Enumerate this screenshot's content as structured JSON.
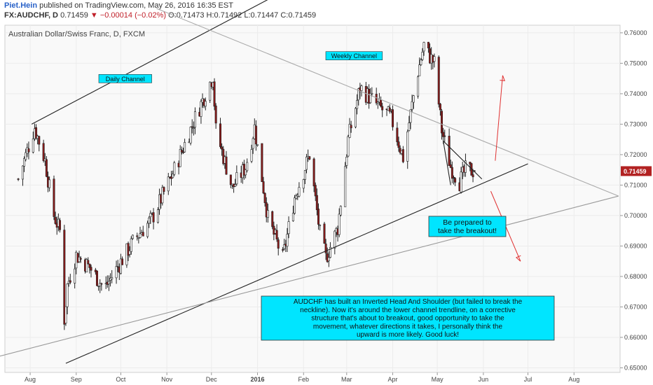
{
  "header": {
    "author": "Piet.Hein",
    "published_text": "published on TradingView.com, May 26, 2016 16:35 EST",
    "symbol": "FX:AUDCHF, D",
    "last": "0.71459",
    "change": "▼ −0.00014 (−0.02%)",
    "open": "O:0.71473",
    "high": "H:0.71492",
    "low": "L:0.71447",
    "close": "C:0.71459"
  },
  "chart_data": {
    "type": "candlestick",
    "title": "Australian Dollar/Swiss Franc, D, FXCM",
    "ylim": [
      0.6485,
      0.7625
    ],
    "y_ticks": [
      "0.76000",
      "0.75000",
      "0.74000",
      "0.73000",
      "0.72000",
      "0.71000",
      "0.70000",
      "0.69000",
      "0.68000",
      "0.67000",
      "0.66000",
      "0.65000"
    ],
    "x_ticks": [
      "Aug",
      "Sep",
      "Oct",
      "Nov",
      "Dec",
      "2016",
      "Feb",
      "Mar",
      "Apr",
      "May",
      "Jun",
      "Jul",
      "Aug"
    ],
    "last_price_label": "0.71459",
    "colors": {
      "up": "#ffffff",
      "down": "#8b1a1a",
      "wick": "#222222",
      "price_tag": "#b22222"
    },
    "anchors": [
      {
        "date": "2015-07-24",
        "close": 0.712
      },
      {
        "date": "2015-08-04",
        "close": 0.729
      },
      {
        "date": "2015-08-11",
        "close": 0.718
      },
      {
        "date": "2015-08-17",
        "close": 0.7
      },
      {
        "date": "2015-08-21",
        "close": 0.695
      },
      {
        "date": "2015-08-24",
        "close": 0.666
      },
      {
        "date": "2015-08-26",
        "close": 0.677
      },
      {
        "date": "2015-09-01",
        "close": 0.687
      },
      {
        "date": "2015-09-10",
        "close": 0.683
      },
      {
        "date": "2015-09-20",
        "close": 0.676
      },
      {
        "date": "2015-10-10",
        "close": 0.692
      },
      {
        "date": "2015-10-22",
        "close": 0.699
      },
      {
        "date": "2015-11-06",
        "close": 0.715
      },
      {
        "date": "2015-11-20",
        "close": 0.732
      },
      {
        "date": "2015-12-02",
        "close": 0.746
      },
      {
        "date": "2015-12-04",
        "close": 0.728
      },
      {
        "date": "2015-12-15",
        "close": 0.709
      },
      {
        "date": "2015-12-24",
        "close": 0.716
      },
      {
        "date": "2015-12-30",
        "close": 0.729
      },
      {
        "date": "2016-01-08",
        "close": 0.699
      },
      {
        "date": "2016-01-18",
        "close": 0.686
      },
      {
        "date": "2016-01-26",
        "close": 0.706
      },
      {
        "date": "2016-02-05",
        "close": 0.72
      },
      {
        "date": "2016-02-12",
        "close": 0.694
      },
      {
        "date": "2016-02-16",
        "close": 0.686
      },
      {
        "date": "2016-02-24",
        "close": 0.696
      },
      {
        "date": "2016-03-02",
        "close": 0.725
      },
      {
        "date": "2016-03-10",
        "close": 0.742
      },
      {
        "date": "2016-03-20",
        "close": 0.737
      },
      {
        "date": "2016-03-31",
        "close": 0.732
      },
      {
        "date": "2016-04-08",
        "close": 0.719
      },
      {
        "date": "2016-04-17",
        "close": 0.745
      },
      {
        "date": "2016-04-22",
        "close": 0.756
      },
      {
        "date": "2016-04-25",
        "close": 0.753
      },
      {
        "date": "2016-04-29",
        "close": 0.75
      },
      {
        "date": "2016-05-04",
        "close": 0.728
      },
      {
        "date": "2016-05-10",
        "close": 0.716
      },
      {
        "date": "2016-05-16",
        "close": 0.711
      },
      {
        "date": "2016-05-20",
        "close": 0.715
      },
      {
        "date": "2016-05-26",
        "close": 0.71459
      }
    ],
    "drawings": [
      {
        "kind": "line",
        "name": "upper-daily-channel",
        "from": {
          "date": "2015-08-02",
          "price": 0.73
        },
        "to": {
          "date": "2016-01-20",
          "price": 0.774
        }
      },
      {
        "kind": "line",
        "name": "lower-daily-channel",
        "from": {
          "date": "2015-08-25",
          "price": 0.6515
        },
        "to": {
          "date": "2016-07-01",
          "price": 0.717
        }
      },
      {
        "kind": "line",
        "name": "weekly-channel",
        "from": {
          "date": "2015-07-01",
          "price": 0.6525
        },
        "to": {
          "date": "2016-08-31",
          "price": 0.7064
        },
        "color": "#9a9a9a"
      },
      {
        "kind": "line",
        "name": "weekly-channel-upper",
        "from": {
          "date": "2015-10-25",
          "price": 0.768
        },
        "to": {
          "date": "2016-08-31",
          "price": 0.7064
        },
        "color": "#aaaaaa"
      },
      {
        "kind": "line",
        "name": "triangle-top",
        "from": {
          "date": "2016-05-05",
          "price": 0.7245
        },
        "to": {
          "date": "2016-05-31",
          "price": 0.712
        }
      },
      {
        "kind": "line",
        "name": "triangle-side",
        "from": {
          "date": "2016-05-05",
          "price": 0.7245
        },
        "to": {
          "date": "2016-05-10",
          "price": 0.71
        }
      },
      {
        "kind": "arrow",
        "name": "up-arrow",
        "from": {
          "date": "2016-06-09",
          "price": 0.718
        },
        "to": {
          "date": "2016-06-14",
          "price": 0.746
        },
        "color": "#e03030"
      },
      {
        "kind": "arrow",
        "name": "down-arrow",
        "from": {
          "date": "2016-06-06",
          "price": 0.708
        },
        "to": {
          "date": "2016-06-26",
          "price": 0.685
        },
        "color": "#e03030"
      }
    ],
    "annotations": [
      {
        "name": "daily-channel-label",
        "text": "Daily Channel",
        "date": "2015-10-04",
        "price": 0.7445
      },
      {
        "name": "weekly-channel-label",
        "text": "Weekly Channel",
        "date": "2016-03-06",
        "price": 0.752
      }
    ]
  },
  "callouts": {
    "breakout": [
      "Be prepared to",
      "take the breakout!"
    ],
    "analysis": [
      "AUDCHF has built an Inverted Head And Shoulder (but failed to break the",
      "neckline). Now it's around the lower channel trendline, on a corrective",
      "structure that's about to breakout, good opportunity to take the",
      "movement, whatever directions it takes, I personally think the",
      "upward is more likely. Good luck!"
    ]
  }
}
